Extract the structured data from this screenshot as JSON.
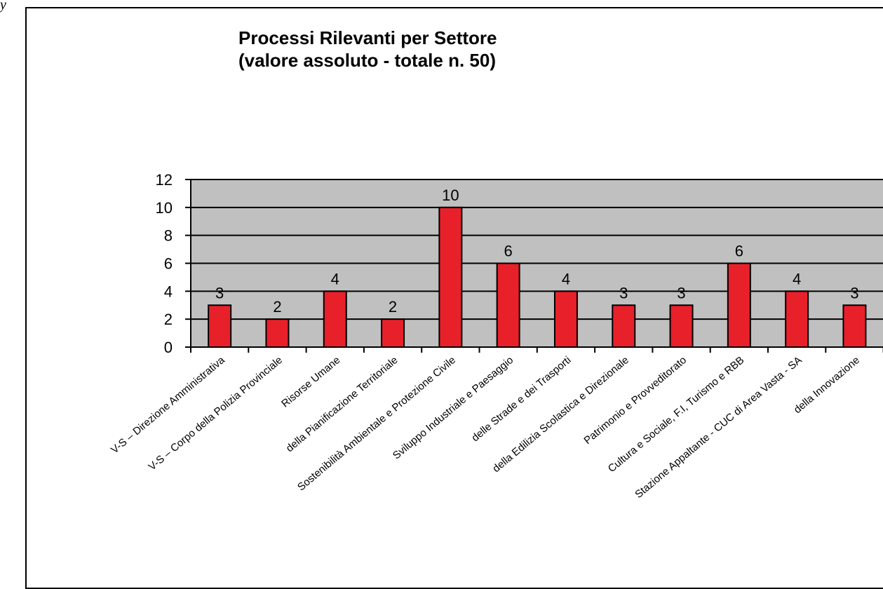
{
  "corner_mark": "y",
  "chart_data": {
    "type": "bar",
    "title": "Processi Rilevanti per Settore",
    "subtitle": "(valore assoluto - totale n. 50)",
    "categories": [
      "V-S – Direzione Amministrativa",
      "V-S – Corpo della Polizia Provinciale",
      "Risorse Umane",
      "della Pianificazione Territoriale",
      "Sostenibilità Ambientale e Protezione Civile",
      "Sviluppo Industriale e Paesaggio",
      "delle Strade e dei Trasporti",
      "della Edilizia Scolastica e Direzionale",
      "Patrimonio e Provveditorato",
      "Cultura e Sociale, F.I, Turismo e RBB",
      "Stazione Appaltante - CUC di Area Vasta - SA",
      "della Innovazione"
    ],
    "values": [
      3,
      2,
      4,
      2,
      10,
      6,
      4,
      3,
      3,
      6,
      4,
      3
    ],
    "data_labels": [
      "3",
      "2",
      "4",
      "2",
      "10",
      "6",
      "4",
      "3",
      "3",
      "6",
      "4",
      "3"
    ],
    "ylim": [
      0,
      12
    ],
    "yticks": [
      "0",
      "2",
      "4",
      "6",
      "8",
      "10",
      "12"
    ],
    "xlabel": "",
    "ylabel": "",
    "grid": true,
    "colors": {
      "bar": "#e8202a",
      "plot_bg": "#c0c0c0",
      "grid": "#000000"
    }
  }
}
